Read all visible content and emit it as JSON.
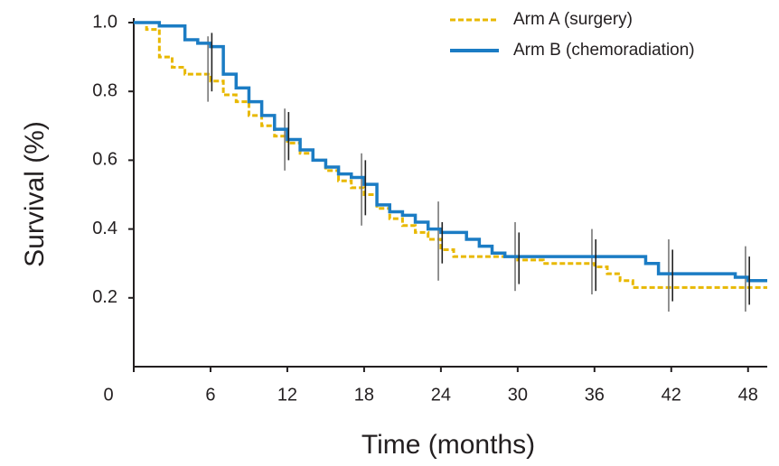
{
  "chart_data": {
    "type": "line",
    "step": true,
    "xlabel": "Time (months)",
    "ylabel": "Survival (%)",
    "xlim": [
      0,
      49.5
    ],
    "ylim": [
      0,
      1
    ],
    "xticks": [
      0,
      6,
      12,
      18,
      24,
      30,
      36,
      42,
      48
    ],
    "yticks": [
      0.2,
      0.4,
      0.6,
      0.8,
      {
        "value": 1,
        "label": "1.0"
      }
    ],
    "legend": "top-right",
    "series": [
      {
        "name": "Arm A (surgery)",
        "color": "#e8b800",
        "dash": true,
        "x": [
          0,
          1,
          2,
          3,
          4,
          6,
          7,
          8,
          9,
          10,
          11,
          12,
          13,
          14,
          15,
          16,
          17,
          18,
          19,
          20,
          21,
          22,
          23,
          24,
          25,
          30,
          32,
          36,
          37,
          38,
          39,
          49.5
        ],
        "values": [
          1.0,
          0.98,
          0.9,
          0.87,
          0.85,
          0.83,
          0.79,
          0.77,
          0.73,
          0.7,
          0.67,
          0.65,
          0.62,
          0.6,
          0.57,
          0.54,
          0.52,
          0.5,
          0.46,
          0.43,
          0.41,
          0.39,
          0.37,
          0.34,
          0.32,
          0.31,
          0.3,
          0.29,
          0.27,
          0.25,
          0.23,
          0.23
        ],
        "ci_x": [
          5.8,
          11.8,
          17.8,
          23.8,
          29.8,
          35.8,
          41.8,
          47.8
        ],
        "ci_low": [
          0.77,
          0.57,
          0.41,
          0.25,
          0.22,
          0.21,
          0.16,
          0.16
        ],
        "ci_high": [
          0.96,
          0.75,
          0.62,
          0.48,
          0.42,
          0.4,
          0.37,
          0.35
        ]
      },
      {
        "name": "Arm B (chemoradiation)",
        "color": "#1b7cc4",
        "dash": false,
        "x": [
          0,
          2,
          4,
          5,
          6,
          7,
          8,
          9,
          10,
          11,
          12,
          13,
          14,
          15,
          16,
          17,
          18,
          19,
          20,
          21,
          22,
          23,
          24,
          26,
          27,
          28,
          29,
          40,
          41,
          42,
          47,
          48,
          49.5
        ],
        "values": [
          1.0,
          0.99,
          0.95,
          0.94,
          0.93,
          0.85,
          0.81,
          0.77,
          0.73,
          0.69,
          0.66,
          0.63,
          0.6,
          0.58,
          0.56,
          0.55,
          0.53,
          0.47,
          0.45,
          0.44,
          0.42,
          0.4,
          0.39,
          0.37,
          0.35,
          0.33,
          0.32,
          0.3,
          0.27,
          0.27,
          0.26,
          0.25,
          0.25
        ],
        "ci_x": [
          6.1,
          12.1,
          18.1,
          24.1,
          30.1,
          36.1,
          42.1,
          48.1
        ],
        "ci_low": [
          0.8,
          0.6,
          0.44,
          0.3,
          0.24,
          0.22,
          0.19,
          0.18
        ],
        "ci_high": [
          0.97,
          0.74,
          0.6,
          0.42,
          0.39,
          0.37,
          0.34,
          0.32
        ]
      }
    ]
  }
}
